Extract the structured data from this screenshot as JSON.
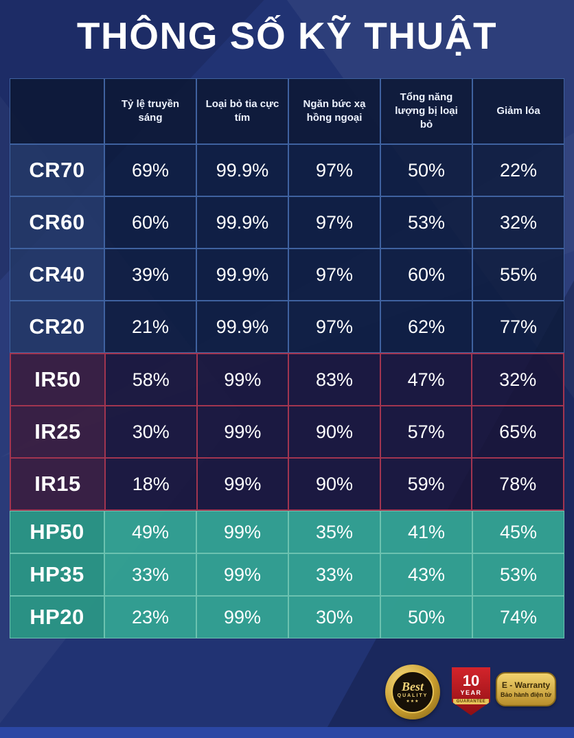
{
  "title": "THÔNG SỐ KỸ THUẬT",
  "table": {
    "header": {
      "product": "",
      "cols": [
        "Tỷ lệ truyền sáng",
        "Loại bỏ tia cực tím",
        "Ngăn bức xạ hồng ngoại",
        "Tổng năng lượng bị loại bỏ",
        "Giảm lóa"
      ]
    },
    "rows": [
      {
        "name": "CR70",
        "group": "cr",
        "values": [
          "69%",
          "99.9%",
          "97%",
          "50%",
          "22%"
        ]
      },
      {
        "name": "CR60",
        "group": "cr",
        "values": [
          "60%",
          "99.9%",
          "97%",
          "53%",
          "32%"
        ]
      },
      {
        "name": "CR40",
        "group": "cr",
        "values": [
          "39%",
          "99.9%",
          "97%",
          "60%",
          "55%"
        ]
      },
      {
        "name": "CR20",
        "group": "cr",
        "values": [
          "21%",
          "99.9%",
          "97%",
          "62%",
          "77%"
        ]
      },
      {
        "name": "IR50",
        "group": "ir",
        "values": [
          "58%",
          "99%",
          "83%",
          "47%",
          "32%"
        ]
      },
      {
        "name": "IR25",
        "group": "ir",
        "values": [
          "30%",
          "99%",
          "90%",
          "57%",
          "65%"
        ]
      },
      {
        "name": "IR15",
        "group": "ir",
        "values": [
          "18%",
          "99%",
          "90%",
          "59%",
          "78%"
        ]
      },
      {
        "name": "HP50",
        "group": "hp",
        "values": [
          "49%",
          "99%",
          "35%",
          "41%",
          "45%"
        ]
      },
      {
        "name": "HP35",
        "group": "hp",
        "values": [
          "33%",
          "99%",
          "33%",
          "43%",
          "53%"
        ]
      },
      {
        "name": "HP20",
        "group": "hp",
        "values": [
          "23%",
          "99%",
          "30%",
          "50%",
          "74%"
        ]
      }
    ]
  },
  "badges": {
    "best_quality": {
      "line1": "Best",
      "line2": "QUALITY",
      "stars": "★★★"
    },
    "ten_year": {
      "number": "10",
      "year": "YEAR",
      "banner": "GUARANTEE"
    },
    "e_warranty": {
      "line1": "E - Warranty",
      "line2": "Bảo hành điện tử"
    }
  },
  "colors": {
    "background": "#213373",
    "cr_border": "#3f62a0",
    "ir_border": "#a23550",
    "hp_fill": "#34a392",
    "gold": "#e7c256",
    "red_badge": "#d3242b"
  },
  "chart_data": {
    "type": "table",
    "title": "THÔNG SỐ KỸ THUẬT",
    "columns": [
      "",
      "Tỷ lệ truyền sáng",
      "Loại bỏ tia cực tím",
      "Ngăn bức xạ hồng ngoại",
      "Tổng năng lượng bị loại bỏ",
      "Giảm lóa"
    ],
    "rows": [
      [
        "CR70",
        "69%",
        "99.9%",
        "97%",
        "50%",
        "22%"
      ],
      [
        "CR60",
        "60%",
        "99.9%",
        "97%",
        "53%",
        "32%"
      ],
      [
        "CR40",
        "39%",
        "99.9%",
        "97%",
        "60%",
        "55%"
      ],
      [
        "CR20",
        "21%",
        "99.9%",
        "97%",
        "62%",
        "77%"
      ],
      [
        "IR50",
        "58%",
        "99%",
        "83%",
        "47%",
        "32%"
      ],
      [
        "IR25",
        "30%",
        "99%",
        "90%",
        "57%",
        "65%"
      ],
      [
        "IR15",
        "18%",
        "99%",
        "90%",
        "59%",
        "78%"
      ],
      [
        "HP50",
        "49%",
        "99%",
        "35%",
        "41%",
        "45%"
      ],
      [
        "HP35",
        "33%",
        "99%",
        "33%",
        "43%",
        "53%"
      ],
      [
        "HP20",
        "23%",
        "99%",
        "30%",
        "50%",
        "74%"
      ]
    ],
    "row_groups": {
      "CR": "blue",
      "IR": "red",
      "HP": "teal"
    }
  }
}
